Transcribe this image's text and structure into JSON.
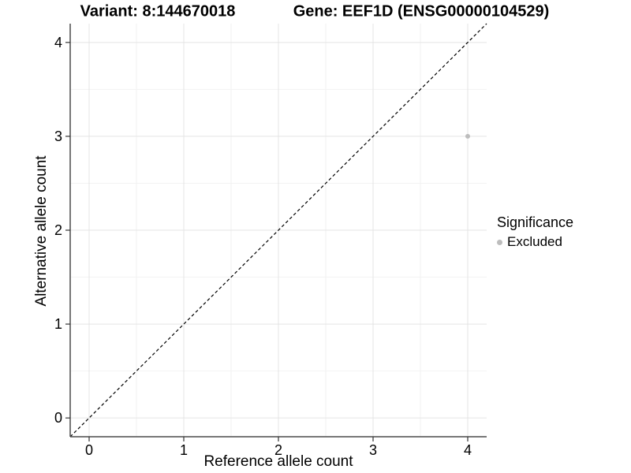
{
  "page": {
    "background": "#ffffff"
  },
  "chart_data": {
    "type": "scatter",
    "title_left": "Variant: 8:144670018",
    "title_right": "Gene: EEF1D (ENSG00000104529)",
    "xlabel": "Reference allele count",
    "ylabel": "Alternative allele count",
    "xlim": [
      -0.2,
      4.2
    ],
    "ylim": [
      -0.2,
      4.2
    ],
    "x_ticks": [
      0,
      1,
      2,
      3,
      4
    ],
    "y_ticks": [
      0,
      1,
      2,
      3,
      4
    ],
    "x_minor_ticks": [
      0.5,
      1.5,
      2.5,
      3.5
    ],
    "y_minor_ticks": [
      0.5,
      1.5,
      2.5,
      3.5
    ],
    "grid": "major+minor",
    "series": [
      {
        "name": "Excluded",
        "marker": "circle",
        "color": "#bdbdbd",
        "points": [
          {
            "x": 4,
            "y": 3
          }
        ]
      }
    ],
    "reference_line": {
      "description": "identity line y = x",
      "style": "dashed",
      "color": "#000000",
      "from": [
        -0.2,
        -0.2
      ],
      "to": [
        4.2,
        4.2
      ]
    },
    "legend": {
      "title": "Significance",
      "position": "right",
      "items": [
        {
          "label": "Excluded",
          "color": "#bdbdbd",
          "marker": "circle"
        }
      ]
    },
    "colors": {
      "grid_major": "#e4e4e4",
      "grid_minor": "#f2f2f2",
      "axis_line": "#4a4a4a",
      "tick_mark": "#333333",
      "text": "#000000",
      "point": "#bdbdbd"
    }
  }
}
